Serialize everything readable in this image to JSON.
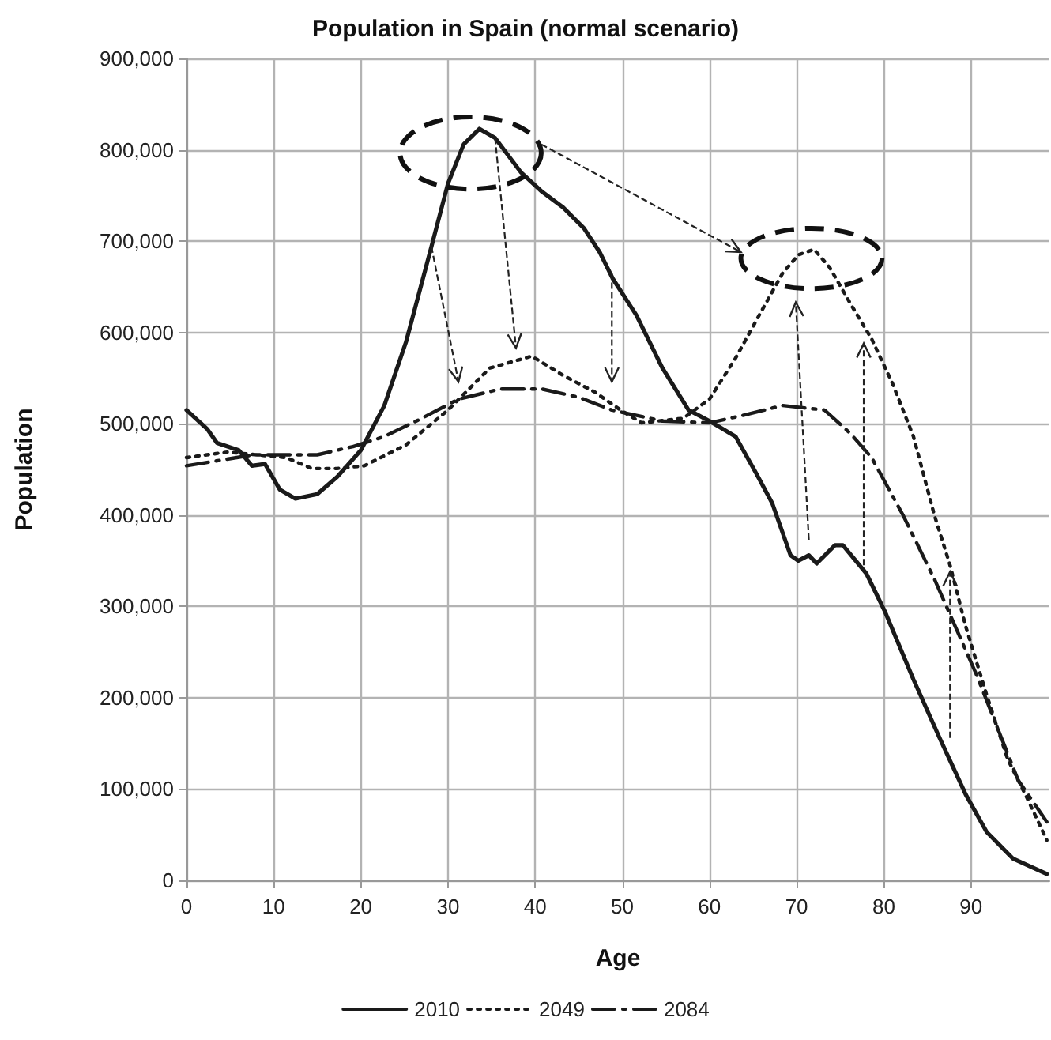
{
  "chart_data": {
    "type": "line",
    "title": "Population in Spain (normal scenario)",
    "xlabel": "Age",
    "ylabel": "Population",
    "xlim": [
      0,
      99
    ],
    "xticks": [
      0,
      10,
      20,
      30,
      40,
      50,
      60,
      70,
      80,
      90
    ],
    "ylim": [
      0,
      900000
    ],
    "yticks": [
      0,
      {
        "value": 100000,
        "label": "100,000"
      },
      {
        "value": 200000,
        "label": "200,000"
      },
      {
        "value": 300000,
        "label": "300,000"
      },
      {
        "value": 400000,
        "label": "400,000"
      },
      {
        "value": 500000,
        "label": "500,000"
      },
      {
        "value": 600000,
        "label": "600,000"
      },
      {
        "value": 700000,
        "label": "700,000"
      },
      {
        "value": 800000,
        "label": "800,000"
      },
      {
        "value": 900000,
        "label": "900,000"
      }
    ],
    "grid": true,
    "legend": "bottom",
    "marker": "none",
    "series": [
      {
        "name": "2010",
        "color": "#1a1a1a",
        "line_style": "solid",
        "x": [
          0,
          2.4,
          3.5,
          6,
          7.5,
          9,
          10.7,
          12.5,
          15,
          17.3,
          20,
          22.7,
          25.2,
          28.1,
          30,
          31.8,
          33.6,
          35.4,
          38.4,
          40.8,
          43.2,
          45.6,
          47.4,
          48.9,
          51.6,
          54.6,
          57.6,
          60,
          63,
          65.4,
          67.2,
          69.3,
          70.2,
          71.4,
          72.3,
          74.4,
          75.3,
          78,
          80.1,
          83.4,
          86.4,
          89.4,
          91.8,
          94.8,
          98.7
        ],
        "values": [
          515000,
          494000,
          479000,
          471000,
          454000,
          456000,
          428000,
          418000,
          423000,
          442000,
          471000,
          520000,
          590000,
          694000,
          763000,
          806000,
          823000,
          813000,
          775000,
          754000,
          737000,
          714000,
          688000,
          659000,
          619000,
          561000,
          515000,
          503000,
          486000,
          445000,
          413000,
          356000,
          350000,
          356000,
          347000,
          367000,
          367000,
          336000,
          295000,
          220000,
          156000,
          94000,
          53000,
          24000,
          7000
        ]
      },
      {
        "name": "2049",
        "color": "#1a1a1a",
        "line_style": "dotted",
        "x": [
          0,
          4.7,
          11.4,
          14.4,
          17.3,
          20.4,
          25.2,
          30,
          34.8,
          39.6,
          43.2,
          46.8,
          49.8,
          52.2,
          57,
          60,
          63,
          66,
          68.4,
          70.2,
          72,
          73.8,
          76.2,
          78.6,
          81,
          83.4,
          85.8,
          87.6,
          89.4,
          91.8,
          94.2,
          96.6,
          98.7
        ],
        "values": [
          463000,
          469000,
          463000,
          451000,
          451000,
          454000,
          477000,
          515000,
          561000,
          574000,
          553000,
          535000,
          515000,
          501000,
          506000,
          527000,
          572000,
          624000,
          665000,
          685000,
          691000,
          671000,
          631000,
          593000,
          544000,
          486000,
          400000,
          345000,
          278000,
          203000,
          133000,
          87000,
          44000
        ]
      },
      {
        "name": "2084",
        "color": "#1a1a1a",
        "line_style": "dashed",
        "x": [
          0,
          7.7,
          15,
          19.1,
          22.7,
          27,
          31.2,
          36,
          40.8,
          45,
          48.8,
          54.6,
          60,
          64.2,
          68.4,
          73.2,
          76.2,
          78.6,
          82.2,
          85.8,
          88.2,
          90.6,
          93,
          95.4,
          98.7
        ],
        "values": [
          454000,
          466000,
          466000,
          475000,
          486000,
          506000,
          527000,
          538000,
          538000,
          529000,
          515000,
          503000,
          501000,
          510000,
          520000,
          515000,
          489000,
          463000,
          400000,
          330000,
          278000,
          226000,
          168000,
          110000,
          64000
        ]
      }
    ]
  }
}
